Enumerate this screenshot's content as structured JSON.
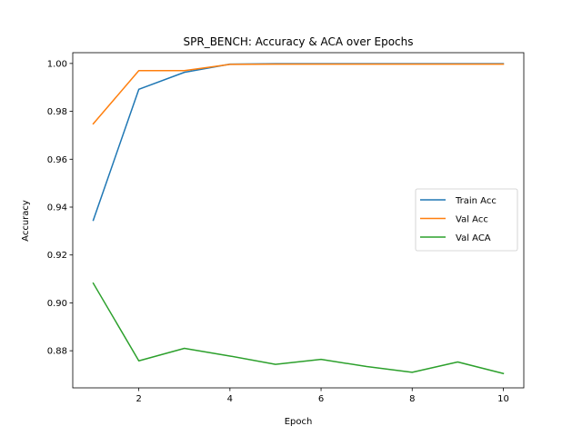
{
  "chart_data": {
    "type": "line",
    "title": "SPR_BENCH: Accuracy & ACA over Epochs",
    "xlabel": "Epoch",
    "ylabel": "Accuracy",
    "x": [
      1,
      2,
      3,
      4,
      5,
      6,
      7,
      8,
      9,
      10
    ],
    "xlim": [
      0.55,
      10.45
    ],
    "ylim": [
      0.8645,
      1.0045
    ],
    "xticks": [
      2,
      4,
      6,
      8,
      10
    ],
    "yticks": [
      0.88,
      0.9,
      0.92,
      0.94,
      0.96,
      0.98,
      1.0
    ],
    "xtick_labels": [
      "2",
      "4",
      "6",
      "8",
      "10"
    ],
    "ytick_labels": [
      "0.88",
      "0.90",
      "0.92",
      "0.94",
      "0.96",
      "0.98",
      "1.00"
    ],
    "grid": false,
    "legend_position": "center-right",
    "series": [
      {
        "name": "Train Acc",
        "color": "#1f77b4",
        "values": [
          0.9345,
          0.9892,
          0.9963,
          0.9997,
          0.9999,
          0.9999,
          0.9999,
          0.9999,
          0.9999,
          0.9999
        ]
      },
      {
        "name": "Val Acc",
        "color": "#ff7f0e",
        "values": [
          0.9748,
          0.997,
          0.997,
          0.9996,
          0.9997,
          0.9997,
          0.9997,
          0.9997,
          0.9997,
          0.9997
        ]
      },
      {
        "name": "Val ACA",
        "color": "#2ca02c",
        "values": [
          0.9082,
          0.8758,
          0.881,
          0.8778,
          0.8743,
          0.8764,
          0.8734,
          0.871,
          0.8753,
          0.8705
        ]
      }
    ]
  }
}
